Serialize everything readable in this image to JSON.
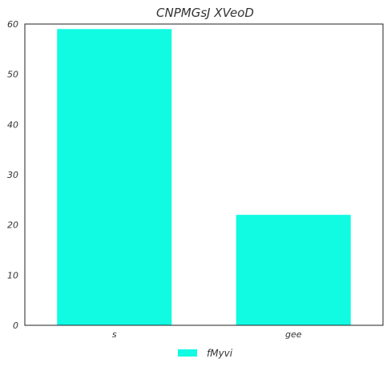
{
  "chart_data": {
    "type": "bar",
    "title": "CNPMGsJ XVeoD",
    "xlabel": "",
    "ylabel": "",
    "categories": [
      "s",
      "gee"
    ],
    "series": [
      {
        "name": "fMyvi",
        "values": [
          59,
          22
        ],
        "color": "#11fbe3"
      }
    ],
    "ylim": [
      0,
      60
    ],
    "yticks": [
      0,
      10,
      20,
      30,
      40,
      50,
      60
    ],
    "grid": false,
    "legend_position": "bottom-center"
  }
}
